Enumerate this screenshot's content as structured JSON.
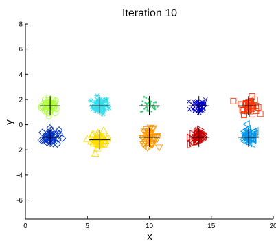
{
  "chart_data": {
    "type": "scatter",
    "title": "Iteration 10",
    "xlabel": "x",
    "ylabel": "y",
    "xlim": [
      0,
      20
    ],
    "ylim": [
      -7.5,
      8
    ],
    "xticks": [
      "0",
      "5",
      "10",
      "15",
      "20"
    ],
    "yticks": [
      "-6",
      "-4",
      "-2",
      "0",
      "2",
      "4",
      "6",
      "8"
    ],
    "grid": false,
    "centroid_marker": "cross",
    "centroid_color": "#000000",
    "series": [
      {
        "marker": "circle",
        "color": "#aaff33",
        "center": [
          2.0,
          1.5
        ]
      },
      {
        "marker": "asterisk",
        "color": "#33ddee",
        "center": [
          6.0,
          1.5
        ]
      },
      {
        "marker": "dot",
        "color": "#33cc77",
        "center": [
          10.0,
          1.5
        ]
      },
      {
        "marker": "x",
        "color": "#0000cc",
        "center": [
          14.0,
          1.5
        ]
      },
      {
        "marker": "square",
        "color": "#ff3300",
        "center": [
          18.0,
          1.5
        ]
      },
      {
        "marker": "diamond",
        "color": "#0033cc",
        "center": [
          2.0,
          -1.0
        ]
      },
      {
        "marker": "triangle-up",
        "color": "#ffdd00",
        "center": [
          6.0,
          -1.2
        ]
      },
      {
        "marker": "triangle-down",
        "color": "#ff9900",
        "center": [
          10.0,
          -1.0
        ]
      },
      {
        "marker": "triangle-right",
        "color": "#cc0000",
        "center": [
          14.0,
          -1.0
        ]
      },
      {
        "marker": "triangle-left",
        "color": "#0099ee",
        "center": [
          18.0,
          -1.0
        ]
      }
    ]
  }
}
